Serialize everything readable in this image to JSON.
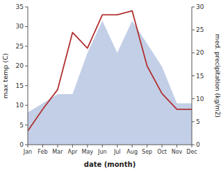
{
  "chart_data": {
    "type": "line",
    "xlabel": "date (month)",
    "ylabel": "max temp (C)",
    "y2label": "med. precipitation (kg/m2)",
    "categories": [
      "Jan",
      "Feb",
      "Mar",
      "Apr",
      "May",
      "Jun",
      "Jul",
      "Aug",
      "Sep",
      "Oct",
      "Nov",
      "Dec"
    ],
    "series": [
      {
        "type": "area",
        "axis": "y2",
        "color": "#aabbdd",
        "values": [
          7,
          9,
          11,
          11,
          20,
          27,
          20,
          27,
          22,
          17,
          9,
          9
        ]
      },
      {
        "type": "line",
        "color": "#b03030",
        "values": [
          3.5,
          9.0,
          14.0,
          28.5,
          24.5,
          33.0,
          33.0,
          34.0,
          20.0,
          13.0,
          9.0,
          9.0
        ]
      }
    ],
    "ylim": [
      0,
      35
    ],
    "yticks": [
      0,
      5,
      10,
      15,
      20,
      25,
      30,
      35
    ],
    "y2lim": [
      0,
      30
    ],
    "y2ticks": [
      0,
      5,
      10,
      15,
      20,
      25,
      30
    ],
    "grid": false
  }
}
